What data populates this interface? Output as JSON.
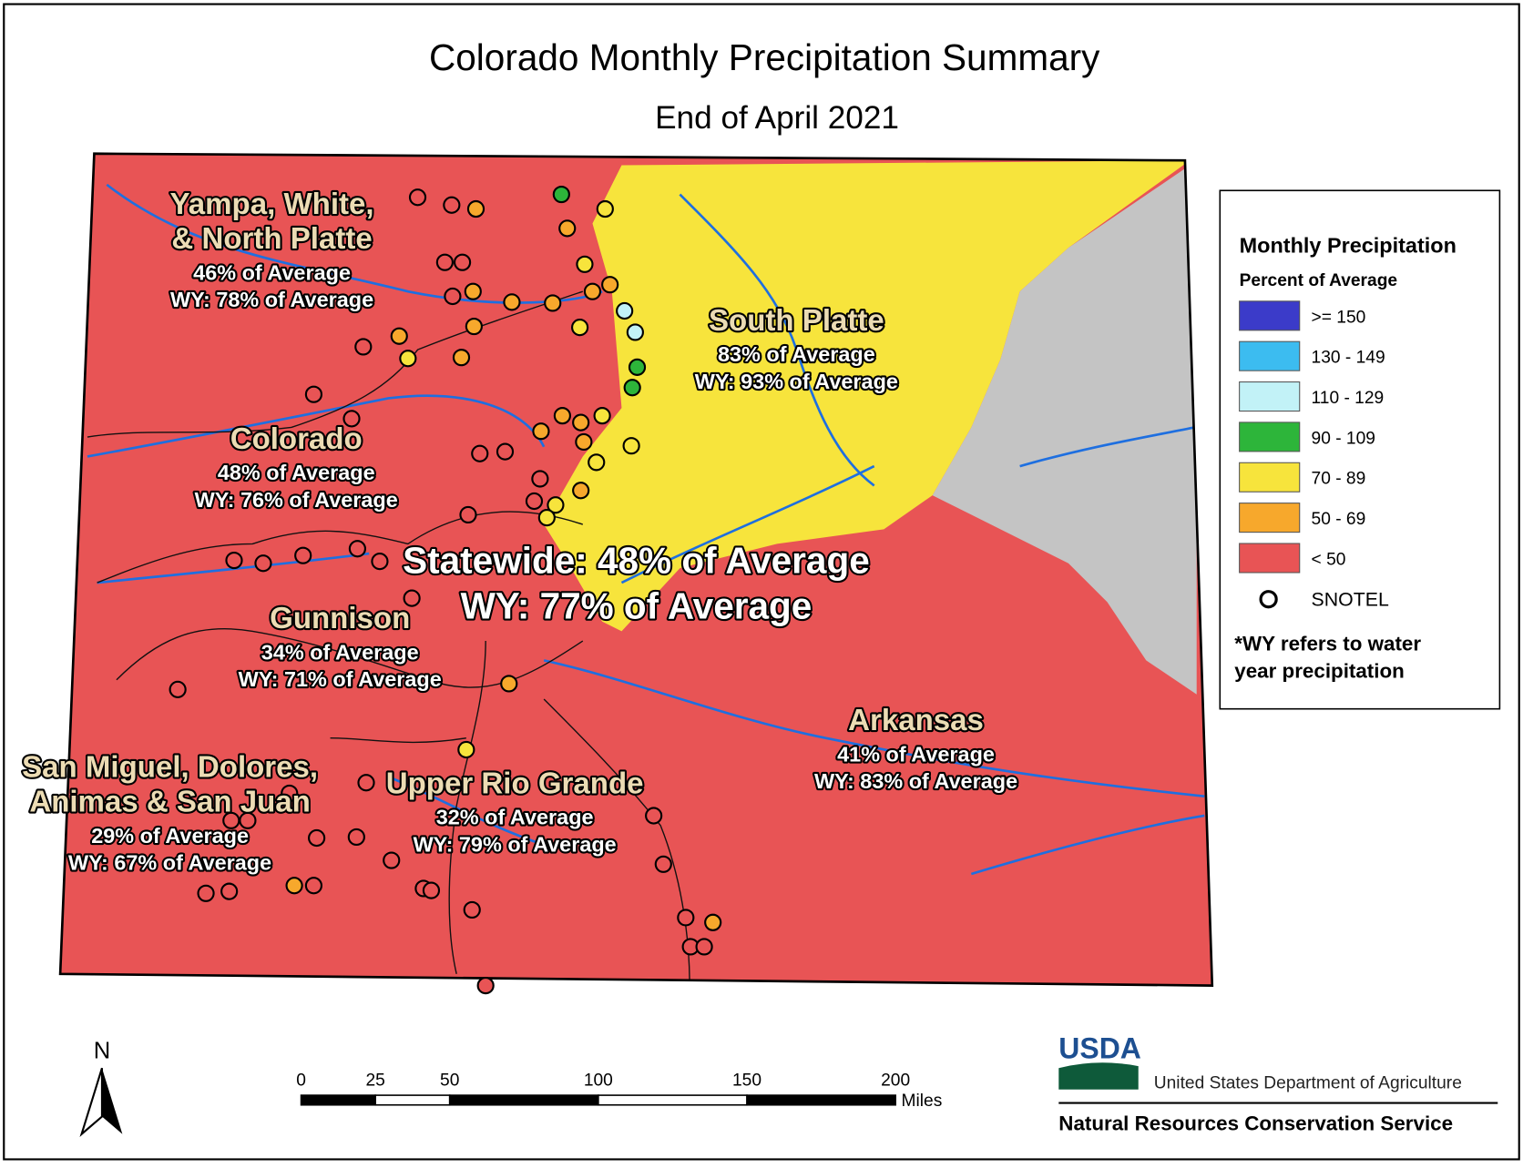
{
  "title": "Colorado Monthly Precipitation Summary",
  "subtitle": "End of April 2021",
  "regions": [
    {
      "name_lines": [
        "Yampa, White,",
        "& North Platte"
      ],
      "percent": "46% of Average",
      "wy": "WY: 78% of Average"
    },
    {
      "name_lines": [
        "South Platte"
      ],
      "percent": "83% of Average",
      "wy": "WY: 93% of Average"
    },
    {
      "name_lines": [
        "Colorado"
      ],
      "percent": "48% of Average",
      "wy": "WY: 76% of Average"
    },
    {
      "name_lines": [
        "Gunnison"
      ],
      "percent": "34% of Average",
      "wy": "WY: 71% of Average"
    },
    {
      "name_lines": [
        "San Miguel, Dolores,",
        "Animas & San Juan"
      ],
      "percent": "29% of Average",
      "wy": "WY: 67% of Average"
    },
    {
      "name_lines": [
        "Upper Rio Grande"
      ],
      "percent": "32% of Average",
      "wy": "WY: 79% of Average"
    },
    {
      "name_lines": [
        "Arkansas"
      ],
      "percent": "41% of Average",
      "wy": "WY: 83% of Average"
    }
  ],
  "statewide": {
    "line1": "Statewide: 48% of Average",
    "line2": "WY: 77% of Average"
  },
  "legend": {
    "title": "Monthly Precipitation",
    "subtitle": "Percent of Average",
    "classes": [
      {
        "label": ">= 150",
        "color": "#3b3bc9"
      },
      {
        "label": "130 - 149",
        "color": "#3cbcf0"
      },
      {
        "label": "110 - 129",
        "color": "#c2f2f7"
      },
      {
        "label": "90 - 109",
        "color": "#2db53a"
      },
      {
        "label": "70 - 89",
        "color": "#f7e43c"
      },
      {
        "label": "50 - 69",
        "color": "#f7a82c"
      },
      {
        "label": "< 50",
        "color": "#e85455"
      }
    ],
    "snotel_label": "SNOTEL",
    "note_lines": [
      "*WY refers to water",
      "year precipitation"
    ]
  },
  "scale_bar": {
    "ticks": [
      0,
      25,
      50,
      100,
      150,
      200
    ],
    "unit": "Miles"
  },
  "north_label": "N",
  "agency": {
    "logo": "USDA",
    "department": "United States Department of Agriculture",
    "service": "Natural Resources Conservation Service"
  }
}
